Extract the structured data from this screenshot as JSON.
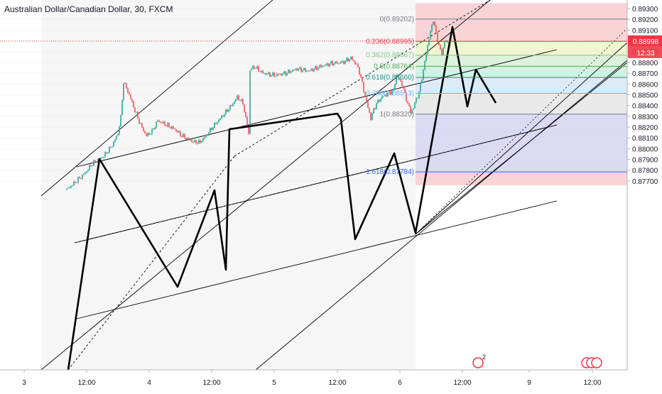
{
  "title": "Australian Dollar/Canadian Dollar, 30, FXCM",
  "current_price_label": "0.88998",
  "countdown_label": "12:33",
  "colors": {
    "up": "#26a69a",
    "down": "#ef5350",
    "current": "#f23645",
    "axis_text": "#131722"
  },
  "chart_data": {
    "type": "candlestick",
    "title": "Australian Dollar/Canadian Dollar, 30, FXCM",
    "xlabel": "",
    "ylabel": "",
    "ylim": [
      0.8766,
      0.8935
    ],
    "y_ticks": [
      "0.89300",
      "0.89200",
      "0.89100",
      "0.89000",
      "0.88900",
      "0.88800",
      "0.88700",
      "0.88600",
      "0.88500",
      "0.88400",
      "0.88300",
      "0.88200",
      "0.88100",
      "0.88000",
      "0.87900",
      "0.87800",
      "0.87700"
    ],
    "x_ticks": [
      "3",
      "12:00",
      "4",
      "12:00",
      "5",
      "12:00",
      "6",
      "12:00",
      "9",
      "12:00"
    ],
    "price_path": [
      [
        0,
        0.8762
      ],
      [
        12,
        0.8776
      ],
      [
        18,
        0.8786
      ],
      [
        26,
        0.8793
      ],
      [
        32,
        0.8803
      ],
      [
        36,
        0.8814
      ],
      [
        38,
        0.8829
      ],
      [
        40,
        0.8862
      ],
      [
        44,
        0.885
      ],
      [
        48,
        0.8835
      ],
      [
        52,
        0.8822
      ],
      [
        56,
        0.8812
      ],
      [
        60,
        0.8816
      ],
      [
        64,
        0.8826
      ],
      [
        70,
        0.8822
      ],
      [
        76,
        0.8818
      ],
      [
        80,
        0.8813
      ],
      [
        86,
        0.8808
      ],
      [
        90,
        0.8806
      ],
      [
        94,
        0.8806
      ],
      [
        98,
        0.8812
      ],
      [
        104,
        0.8822
      ],
      [
        110,
        0.8831
      ],
      [
        116,
        0.884
      ],
      [
        120,
        0.8848
      ],
      [
        124,
        0.8842
      ],
      [
        126,
        0.8828
      ],
      [
        128,
        0.8814
      ],
      [
        129,
        0.8873
      ],
      [
        132,
        0.8876
      ],
      [
        138,
        0.887
      ],
      [
        146,
        0.8868
      ],
      [
        154,
        0.887
      ],
      [
        162,
        0.8874
      ],
      [
        170,
        0.8872
      ],
      [
        178,
        0.8876
      ],
      [
        186,
        0.8879
      ],
      [
        194,
        0.888
      ],
      [
        200,
        0.8884
      ],
      [
        204,
        0.8878
      ],
      [
        206,
        0.8871
      ],
      [
        208,
        0.886
      ],
      [
        210,
        0.8848
      ],
      [
        212,
        0.8838
      ],
      [
        214,
        0.8828
      ],
      [
        216,
        0.8836
      ],
      [
        218,
        0.8842
      ],
      [
        222,
        0.8848
      ],
      [
        226,
        0.8851
      ],
      [
        230,
        0.8854
      ],
      [
        232,
        0.8868
      ],
      [
        236,
        0.886
      ],
      [
        238,
        0.885
      ],
      [
        240,
        0.8842
      ],
      [
        242,
        0.8834
      ],
      [
        244,
        0.8838
      ],
      [
        246,
        0.8846
      ],
      [
        248,
        0.8852
      ],
      [
        250,
        0.8866
      ],
      [
        252,
        0.888
      ],
      [
        254,
        0.8896
      ],
      [
        256,
        0.8908
      ],
      [
        258,
        0.892
      ],
      [
        260,
        0.8906
      ],
      [
        262,
        0.8896
      ],
      [
        264,
        0.8887
      ],
      [
        266,
        0.89
      ],
      [
        268,
        0.8898
      ],
      [
        270,
        0.89
      ]
    ],
    "annotations": {
      "fibonacci": [
        {
          "level": "0",
          "price": 0.89202,
          "label": "0(0.89202)",
          "color": "#787b86"
        },
        {
          "level": "0.236",
          "price": 0.88995,
          "label": "0.236(0.88995)",
          "color": "#f23645"
        },
        {
          "level": "0.382",
          "price": 0.88867,
          "label": "0.382(0.88867)",
          "color": "#81c784"
        },
        {
          "level": "0.5",
          "price": 0.88764,
          "label": "0.5(0.88764)",
          "color": "#4caf50"
        },
        {
          "level": "0.618",
          "price": 0.8866,
          "label": "0.618(0.88660)",
          "color": "#089981"
        },
        {
          "level": "0.786",
          "price": 0.88513,
          "label": "0.786(0.88513)",
          "color": "#64b5f6"
        },
        {
          "level": "1",
          "price": 0.8832,
          "label": "1(0.88320)",
          "color": "#787b86"
        },
        {
          "level": "1.618",
          "price": 0.87784,
          "label": "1.618(0.87784)",
          "color": "#2962ff"
        }
      ],
      "fib_zones": [
        {
          "top": 0.8935,
          "bottom": 0.89202,
          "color": "#f7c9cc"
        },
        {
          "top": 0.89202,
          "bottom": 0.88995,
          "color": "#f7c9cc"
        },
        {
          "top": 0.88995,
          "bottom": 0.88867,
          "color": "#eef3c4"
        },
        {
          "top": 0.88867,
          "bottom": 0.88764,
          "color": "#d3f0d2"
        },
        {
          "top": 0.88764,
          "bottom": 0.8866,
          "color": "#c9ecd9"
        },
        {
          "top": 0.8866,
          "bottom": 0.88513,
          "color": "#d4e6f4"
        },
        {
          "top": 0.88513,
          "bottom": 0.8832,
          "color": "#e3e3e3"
        },
        {
          "top": 0.8832,
          "bottom": 0.87784,
          "color": "#d2d1f3"
        },
        {
          "top": 0.87784,
          "bottom": 0.8766,
          "color": "#f7c9cc"
        }
      ],
      "event_badge": "2"
    }
  }
}
